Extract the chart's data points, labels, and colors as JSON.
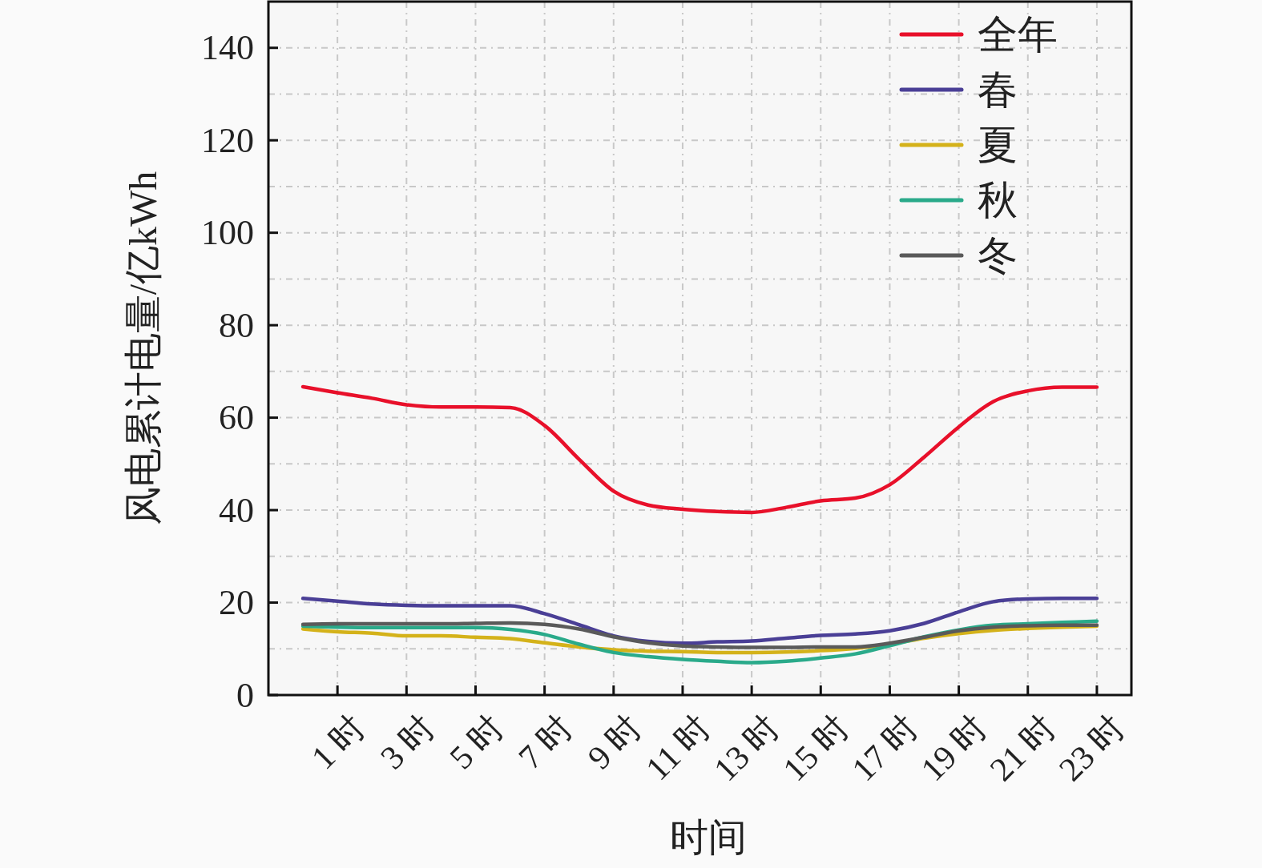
{
  "chart_data": {
    "type": "line",
    "xlabel": "时间",
    "ylabel": "风电累计电量/亿kWh",
    "x": [
      0,
      1,
      2,
      3,
      4,
      5,
      6,
      7,
      8,
      9,
      10,
      11,
      12,
      13,
      14,
      15,
      16,
      17,
      18,
      19,
      20,
      21,
      22,
      23
    ],
    "xlim": [
      -1,
      24
    ],
    "xticks": [
      {
        "value": 1,
        "label": "1 时"
      },
      {
        "value": 3,
        "label": "3 时"
      },
      {
        "value": 5,
        "label": "5 时"
      },
      {
        "value": 7,
        "label": "7 时"
      },
      {
        "value": 9,
        "label": "9 时"
      },
      {
        "value": 11,
        "label": "11 时"
      },
      {
        "value": 13,
        "label": "13 时"
      },
      {
        "value": 15,
        "label": "15 时"
      },
      {
        "value": 17,
        "label": "17 时"
      },
      {
        "value": 19,
        "label": "19 时"
      },
      {
        "value": 21,
        "label": "21 时"
      },
      {
        "value": 23,
        "label": "23 时"
      }
    ],
    "ylim": [
      0,
      150
    ],
    "yticks": [
      0,
      {
        "value": 10,
        "label": null
      },
      20,
      {
        "value": 30,
        "label": null
      },
      40,
      {
        "value": 50,
        "label": null
      },
      60,
      {
        "value": 70,
        "label": null
      },
      80,
      {
        "value": 90,
        "label": null
      },
      100,
      {
        "value": 110,
        "label": null
      },
      120,
      {
        "value": 130,
        "label": null
      },
      140
    ],
    "grid": true,
    "legend": "top right",
    "marker": "none",
    "line_style": "solid",
    "series": [
      {
        "name": "全年",
        "color": "#e8102a",
        "values": [
          66.7,
          65.4,
          64.2,
          62.8,
          62.3,
          62.3,
          62.2,
          58.3,
          51.0,
          44.1,
          41.1,
          40.2,
          39.7,
          39.5,
          40.6,
          42.0,
          42.6,
          45.5,
          51.5,
          58.0,
          63.5,
          65.8,
          66.6,
          66.6
        ]
      },
      {
        "name": "春",
        "color": "#4a3f96",
        "values": [
          20.9,
          20.3,
          19.7,
          19.4,
          19.3,
          19.3,
          19.3,
          17.6,
          15.2,
          12.8,
          11.6,
          11.2,
          11.5,
          11.7,
          12.3,
          12.9,
          13.2,
          13.9,
          15.5,
          18.0,
          20.2,
          20.8,
          20.9,
          20.9
        ]
      },
      {
        "name": "夏",
        "color": "#d4b21a",
        "values": [
          14.3,
          13.7,
          13.4,
          12.8,
          12.8,
          12.5,
          12.2,
          11.3,
          10.4,
          9.8,
          9.5,
          9.4,
          9.2,
          9.2,
          9.3,
          9.6,
          10.1,
          11.0,
          12.3,
          13.3,
          14.0,
          14.4,
          14.7,
          14.9
        ]
      },
      {
        "name": "秋",
        "color": "#2aaa8a",
        "values": [
          14.9,
          14.7,
          14.6,
          14.6,
          14.6,
          14.6,
          14.2,
          13.1,
          11.0,
          9.2,
          8.3,
          7.7,
          7.3,
          7.0,
          7.3,
          8.0,
          8.9,
          10.7,
          12.6,
          14.1,
          15.1,
          15.4,
          15.7,
          16.0
        ]
      },
      {
        "name": "冬",
        "color": "#5a5a5a",
        "values": [
          15.3,
          15.4,
          15.4,
          15.4,
          15.4,
          15.5,
          15.6,
          15.3,
          14.3,
          12.6,
          11.3,
          10.6,
          10.4,
          10.3,
          10.3,
          10.4,
          10.4,
          11.2,
          12.5,
          13.9,
          14.7,
          15.0,
          15.1,
          15.1
        ]
      }
    ]
  }
}
